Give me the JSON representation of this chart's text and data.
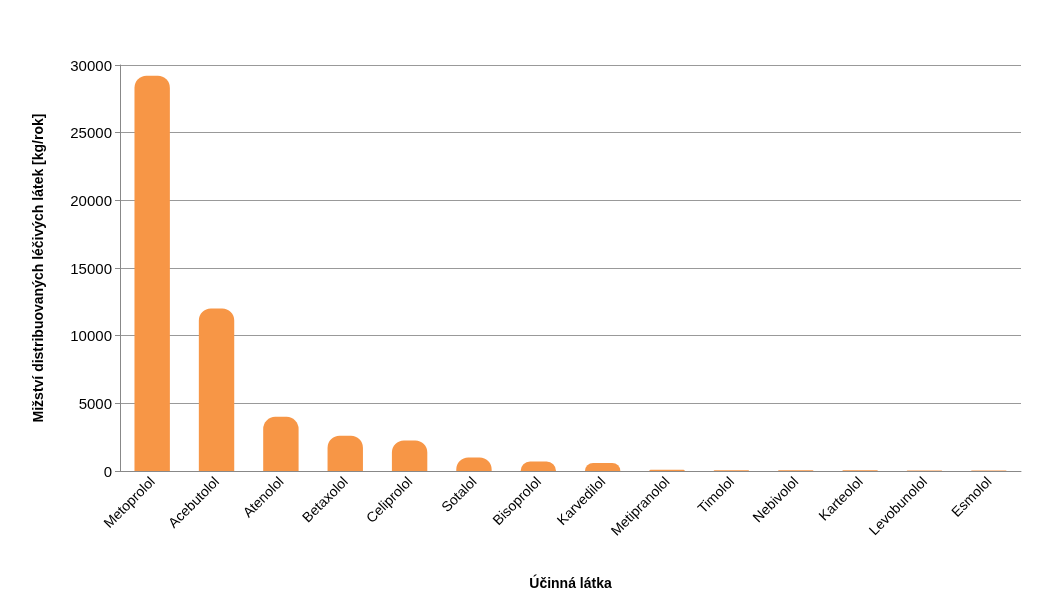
{
  "chart_data": {
    "type": "bar",
    "xlabel": "Účinná látka",
    "ylabel": "Mižství distribuovaných léčivých látek [kg/rok]",
    "categories": [
      "Metoprolol",
      "Acebutolol",
      "Atenolol",
      "Betaxolol",
      "Celiprolol",
      "Sotalol",
      "Bisoprolol",
      "Karvedilol",
      "Metipranolol",
      "Timolol",
      "Nebivolol",
      "Karteolol",
      "Levobunolol",
      "Esmolol"
    ],
    "values": [
      29200,
      12000,
      4000,
      2600,
      2250,
      1000,
      700,
      600,
      100,
      60,
      60,
      50,
      40,
      40
    ],
    "color": "#f79646",
    "ylim": [
      0,
      30000
    ],
    "yticks": [
      0,
      5000,
      10000,
      15000,
      20000,
      25000,
      30000
    ],
    "grid": "y"
  }
}
